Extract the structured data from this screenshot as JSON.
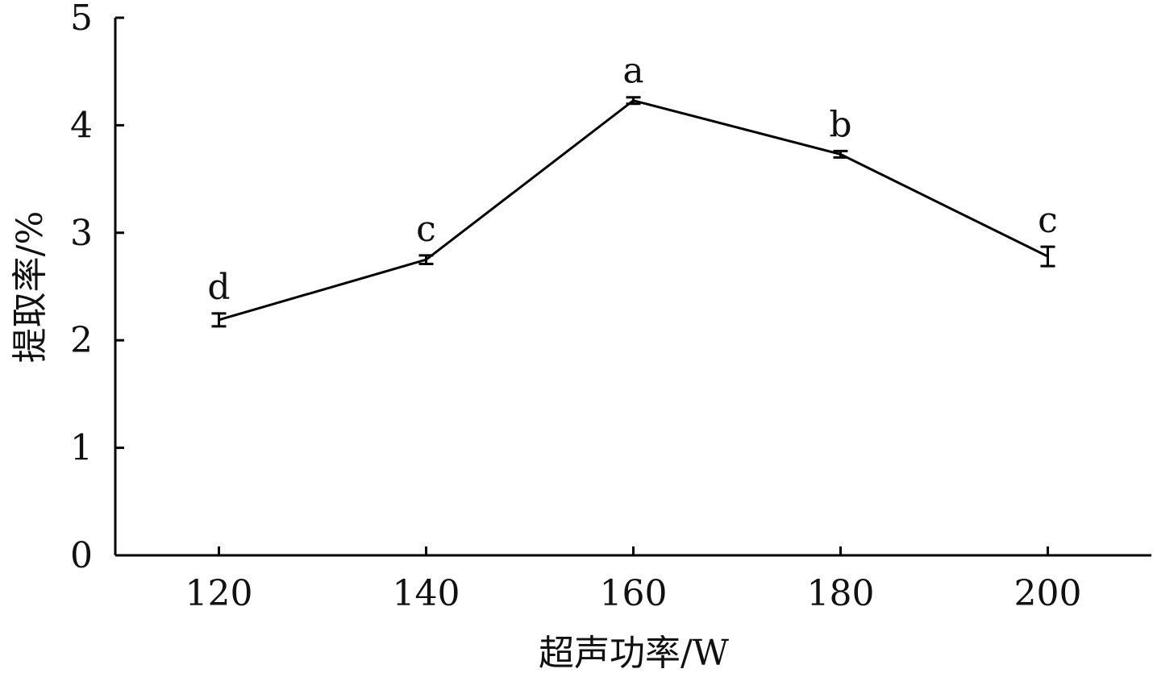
{
  "chart_data": {
    "type": "line",
    "title": "",
    "xlabel": "超声功率/W",
    "ylabel": "提取率/%",
    "x": [
      120,
      140,
      160,
      180,
      200
    ],
    "x_ticks": [
      "120",
      "140",
      "160",
      "180",
      "200"
    ],
    "y_ticks": [
      "0",
      "1",
      "2",
      "3",
      "4",
      "5"
    ],
    "xlim": [
      110,
      210
    ],
    "ylim": [
      0,
      5
    ],
    "grid": false,
    "legend": "none",
    "series": [
      {
        "values": [
          2.19,
          2.75,
          4.23,
          3.73,
          2.78
        ],
        "errors": [
          0.06,
          0.04,
          0.03,
          0.03,
          0.09
        ],
        "labels": [
          "d",
          "c",
          "a",
          "b",
          "c"
        ],
        "color": "#000000"
      }
    ]
  }
}
